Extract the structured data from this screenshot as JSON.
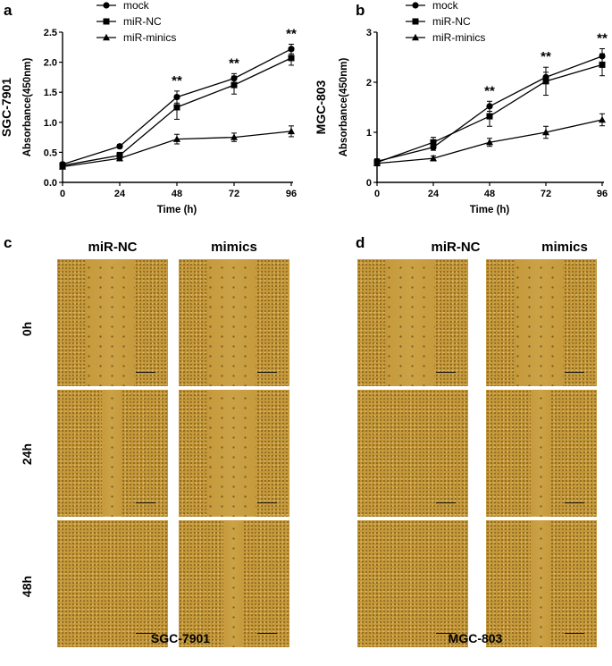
{
  "panels": {
    "a": "a",
    "b": "b",
    "c": "c",
    "d": "d"
  },
  "legend": [
    "mock",
    "miR-NC",
    "miR-minics"
  ],
  "significance": "**",
  "chart_data": [
    {
      "type": "line",
      "panel": "a",
      "cell_line": "SGC-7901",
      "xlabel": "Time (h)",
      "ylabel": "Absorbance(450nm)",
      "x": [
        0,
        24,
        48,
        72,
        96
      ],
      "xticks": [
        "0",
        "24",
        "48",
        "72",
        "96"
      ],
      "yticks": [
        "0.0",
        "0.5",
        "1.0",
        "1.5",
        "2.0",
        "2.5"
      ],
      "ylim": [
        0,
        2.5
      ],
      "series": [
        {
          "name": "mock",
          "marker": "circle",
          "values": [
            0.3,
            0.6,
            1.42,
            1.73,
            2.22
          ],
          "errors": [
            0.03,
            0.03,
            0.1,
            0.08,
            0.08
          ]
        },
        {
          "name": "miR-NC",
          "marker": "square",
          "values": [
            0.28,
            0.45,
            1.25,
            1.62,
            2.07
          ],
          "errors": [
            0.05,
            0.05,
            0.2,
            0.15,
            0.12
          ]
        },
        {
          "name": "miR-minics",
          "marker": "triangle",
          "values": [
            0.26,
            0.4,
            0.72,
            0.75,
            0.85
          ],
          "errors": [
            0.03,
            0.04,
            0.08,
            0.07,
            0.09
          ]
        }
      ],
      "significant_x": [
        48,
        72,
        96
      ]
    },
    {
      "type": "line",
      "panel": "b",
      "cell_line": "MGC-803",
      "xlabel": "Time (h)",
      "ylabel": "Absorbance(450nm)",
      "x": [
        0,
        24,
        48,
        72,
        96
      ],
      "xticks": [
        "0",
        "24",
        "48",
        "72",
        "96"
      ],
      "yticks": [
        "0",
        "1",
        "2",
        "3"
      ],
      "ylim": [
        0,
        3
      ],
      "series": [
        {
          "name": "mock",
          "marker": "circle",
          "values": [
            0.42,
            0.7,
            1.52,
            2.1,
            2.52
          ],
          "errors": [
            0.05,
            0.06,
            0.1,
            0.1,
            0.15
          ]
        },
        {
          "name": "miR-NC",
          "marker": "square",
          "values": [
            0.4,
            0.8,
            1.32,
            2.02,
            2.35
          ],
          "errors": [
            0.06,
            0.1,
            0.2,
            0.28,
            0.22
          ]
        },
        {
          "name": "miR-minics",
          "marker": "triangle",
          "values": [
            0.38,
            0.48,
            0.8,
            1.0,
            1.25
          ],
          "errors": [
            0.05,
            0.05,
            0.08,
            0.12,
            0.12
          ]
        }
      ],
      "significant_x": [
        48,
        72,
        96
      ]
    }
  ],
  "wound": {
    "col_headers": [
      "miR-NC",
      "mimics"
    ],
    "row_labels": [
      "0h",
      "24h",
      "48h"
    ],
    "cell_lines": [
      "SGC-7901",
      "MGC-803"
    ],
    "wound_closure": {
      "SGC-7901": {
        "miR-NC": [
          "open",
          "partial",
          "closed"
        ],
        "mimics": [
          "open",
          "open",
          "partial"
        ]
      },
      "MGC-803": {
        "miR-NC": [
          "open",
          "closed",
          "closed"
        ],
        "mimics": [
          "open",
          "partial",
          "partial"
        ]
      }
    }
  }
}
